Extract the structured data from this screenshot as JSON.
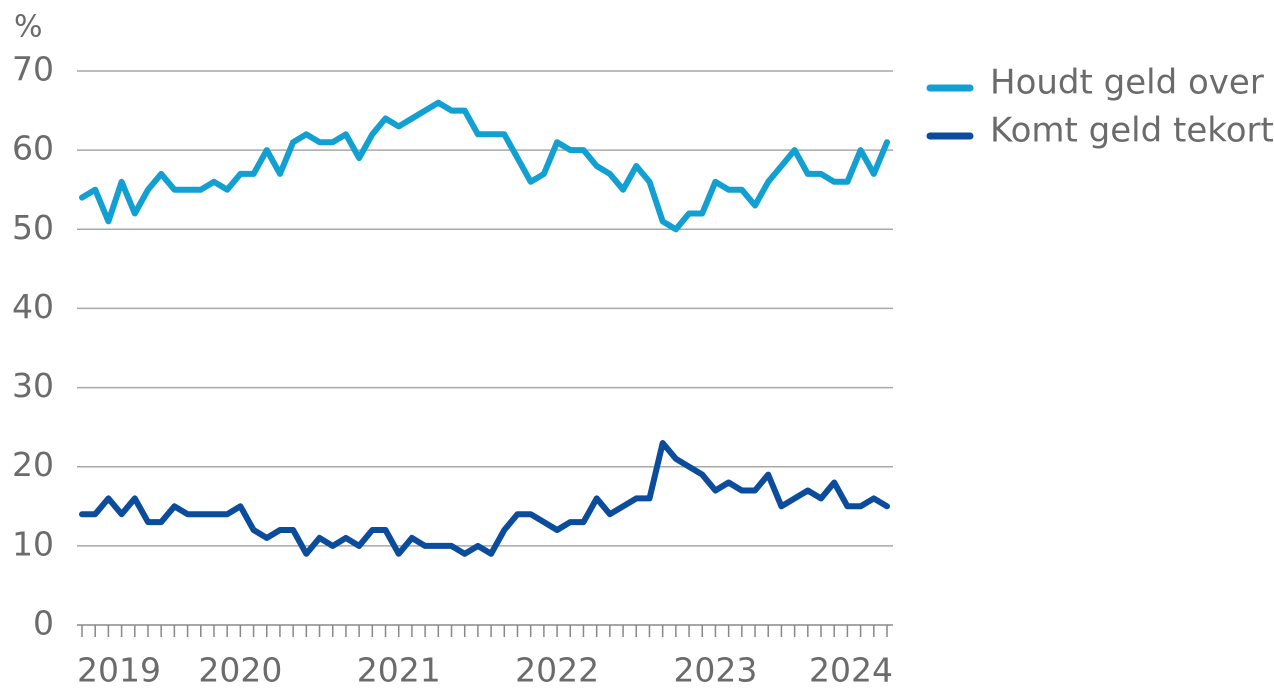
{
  "chart_data": {
    "type": "line",
    "y_label": "%",
    "categories": [
      "2019",
      null,
      null,
      null,
      null,
      null,
      null,
      null,
      null,
      null,
      null,
      null,
      "2020",
      null,
      null,
      null,
      null,
      null,
      null,
      null,
      null,
      null,
      null,
      null,
      "2021",
      null,
      null,
      null,
      null,
      null,
      null,
      null,
      null,
      null,
      null,
      null,
      "2022",
      null,
      null,
      null,
      null,
      null,
      null,
      null,
      null,
      null,
      null,
      null,
      "2023",
      null,
      null,
      null,
      null,
      null,
      null,
      null,
      null,
      null,
      null,
      null,
      "2024",
      null
    ],
    "series": [
      {
        "name": "Houdt geld over",
        "color": "#12a0d2",
        "values": [
          54,
          55,
          51,
          56,
          52,
          55,
          57,
          55,
          55,
          55,
          56,
          55,
          57,
          57,
          60,
          57,
          61,
          62,
          61,
          61,
          62,
          59,
          62,
          64,
          63,
          64,
          65,
          66,
          65,
          65,
          62,
          62,
          62,
          59,
          56,
          57,
          61,
          60,
          60,
          58,
          57,
          55,
          58,
          56,
          51,
          50,
          52,
          52,
          56,
          55,
          55,
          53,
          56,
          58,
          60,
          57,
          57,
          56,
          56,
          60,
          57,
          61
        ]
      },
      {
        "name": "Komt geld tekort",
        "color": "#0b4c9c",
        "values": [
          14,
          14,
          16,
          14,
          16,
          13,
          13,
          15,
          14,
          14,
          14,
          14,
          15,
          12,
          11,
          12,
          12,
          9,
          11,
          10,
          11,
          10,
          12,
          12,
          9,
          11,
          10,
          10,
          10,
          9,
          10,
          9,
          12,
          14,
          14,
          13,
          12,
          13,
          13,
          16,
          14,
          15,
          16,
          16,
          23,
          21,
          20,
          19,
          17,
          18,
          17,
          17,
          19,
          15,
          16,
          17,
          16,
          18,
          15,
          15,
          16,
          15
        ]
      }
    ],
    "ylim": [
      0,
      70
    ],
    "yticks": [
      0,
      10,
      20,
      30,
      40,
      50,
      60,
      70
    ],
    "grid": true,
    "legend": "right"
  }
}
